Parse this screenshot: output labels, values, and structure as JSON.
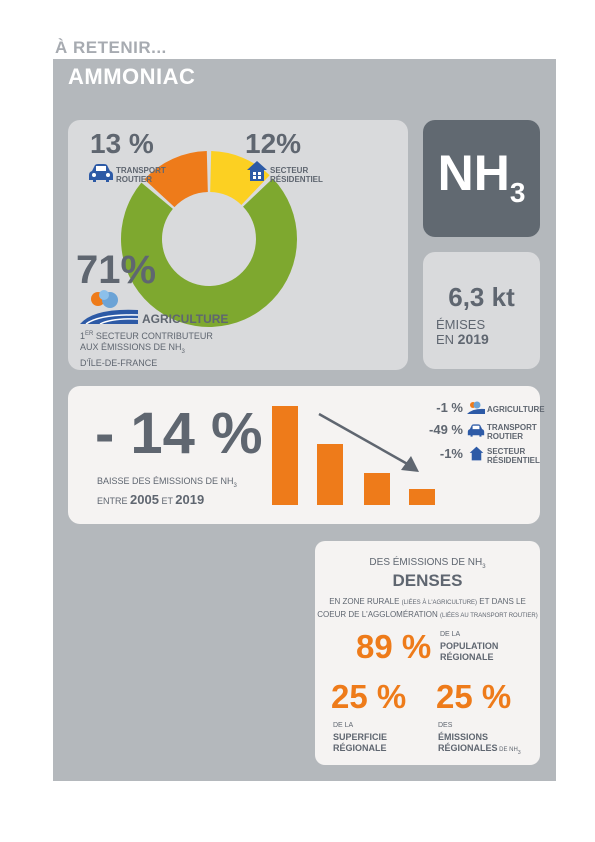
{
  "header": {
    "kicker": "À RETENIR...",
    "title": "AMMONIAC"
  },
  "donut": {
    "segments": [
      {
        "name": "transport",
        "percent": 13,
        "color": "#ee7b1a"
      },
      {
        "name": "residentiel",
        "percent": 12,
        "color": "#fcd022"
      },
      {
        "name": "agriculture",
        "percent": 71,
        "color": "#7ea82f"
      }
    ],
    "transport_value": "13 %",
    "transport_label_1": "TRANSPORT",
    "transport_label_2": "ROUTIER",
    "residentiel_value": "12%",
    "residentiel_label_1": "SECTEUR",
    "residentiel_label_2": "RÉSIDENTIEL",
    "agriculture_value": "71%",
    "agriculture_label": "AGRICULTURE",
    "note_line_1_sup": "ER",
    "note_line_1": " SECTEUR CONTRIBUTEUR",
    "note_line_1_num": "1",
    "note_line_2": "AUX ÉMISSIONS DE NH",
    "note_line_2_sub": "3",
    "note_line_3": "D'ÎLE-DE-FRANCE"
  },
  "formula": {
    "main": "NH",
    "sub": "3"
  },
  "emitted": {
    "value": "6,3 kt",
    "line_1": "ÉMISES",
    "line_2_prefix": "EN ",
    "year": "2019"
  },
  "trend": {
    "value": "- 14 %",
    "caption_1": "BAISSE DES ÉMISSIONS DE NH",
    "caption_1_sub": "3",
    "caption_2_prefix": "ENTRE ",
    "year_start": "2005",
    "caption_2_mid": " ET ",
    "year_end": "2019",
    "bar_levels": [
      1.0,
      0.62,
      0.32,
      0.16
    ],
    "legend": [
      {
        "value": "-1 %",
        "label_1": "AGRICULTURE",
        "label_2": ""
      },
      {
        "value": "-49 %",
        "label_1": "TRANSPORT",
        "label_2": "ROUTIER"
      },
      {
        "value": "-1%",
        "label_1": "SECTEUR",
        "label_2": "RÉSIDENTIEL"
      }
    ]
  },
  "dense": {
    "line_1": "DES ÉMISSIONS DE NH",
    "line_1_sub": "3",
    "heading": "DENSES",
    "desc_1a": "EN ZONE RURALE ",
    "desc_1b": "(LIÉES À L'AGRICULTURE)",
    "desc_1c": " ET DANS LE",
    "desc_2a": "COEUR DE L'AGGLOMÉRATION ",
    "desc_2b": "(LIÉES AU TRANSPORT ROUTIER)",
    "pop_value": "89 %",
    "pop_small": "DE LA",
    "pop_bold_1": "POPULATION",
    "pop_bold_2": "RÉGIONALE",
    "sup_value": "25 %",
    "sup_small": "DE LA",
    "sup_bold_1": "SUPERFICIE",
    "sup_bold_2": "RÉGIONALE",
    "em_value": "25 %",
    "em_small": "DES",
    "em_bold_1": "ÉMISSIONS",
    "em_bold_2": "RÉGIONALES",
    "em_tail": " DE NH",
    "em_tail_sub": "3"
  },
  "colors": {
    "orange": "#ee7b1a",
    "green": "#7ea82f",
    "yellow": "#fcd022",
    "blue": "#2d5aa6",
    "slate": "#5f6670"
  },
  "icons": [
    "car-icon",
    "house-icon",
    "tree-field-icon"
  ]
}
